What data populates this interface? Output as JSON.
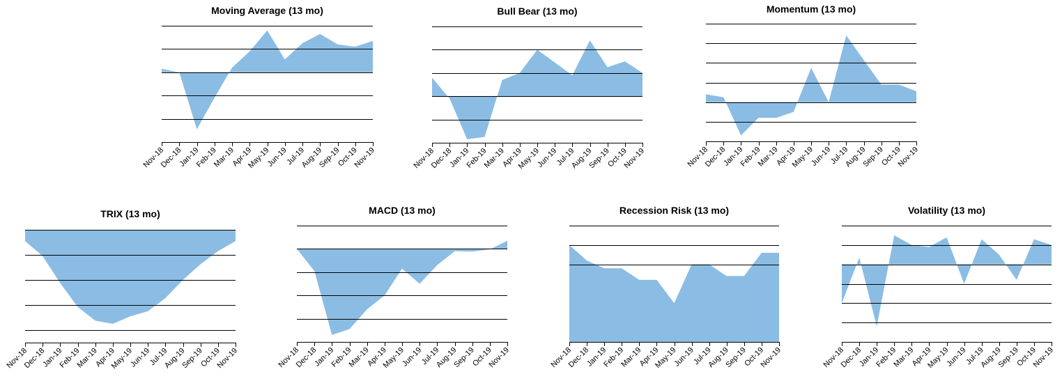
{
  "fill_color": "#8bbde4",
  "chart_data": [
    {
      "type": "area",
      "title": "Moving Average (13 mo)",
      "categories": [
        "Nov-18",
        "Dec-18",
        "Jan-19",
        "Feb-19",
        "Mar-19",
        "Apr-19",
        "May-19",
        "Jun-19",
        "Jul-19",
        "Aug-19",
        "Sep-19",
        "Oct-19",
        "Nov-19"
      ],
      "values": [
        0.3,
        0,
        -4.9,
        -2.2,
        0.4,
        1.8,
        3.6,
        1.1,
        2.5,
        3.3,
        2.4,
        2.2,
        2.7
      ],
      "ylim": [
        -6,
        4
      ],
      "gridlines": [
        4,
        2,
        0,
        -2,
        -4
      ],
      "baseline": 0,
      "grid": true
    },
    {
      "type": "area",
      "title": "Bull Bear (13 mo)",
      "categories": [
        "Nov-18",
        "Dec-18",
        "Jan-19",
        "Feb-19",
        "Mar-19",
        "Apr-19",
        "May-19",
        "Jun-19",
        "Jul-19",
        "Aug-19",
        "Sep-19",
        "Oct-19",
        "Nov-19"
      ],
      "values": [
        1.6,
        -0.2,
        -3.7,
        -3.5,
        1.4,
        2.0,
        4.0,
        2.9,
        1.8,
        4.8,
        2.5,
        3.0,
        2.0
      ],
      "ylim": [
        -4,
        6
      ],
      "gridlines": [
        6,
        4,
        2,
        0,
        -2
      ],
      "baseline": 0,
      "grid": true
    },
    {
      "type": "area",
      "title": "Momentum (13 mo)",
      "categories": [
        "Nov-18",
        "Dec-18",
        "Jan-19",
        "Feb-19",
        "Mar-19",
        "Apr-19",
        "May-19",
        "Jun-19",
        "Jul-19",
        "Aug-19",
        "Sep-19",
        "Oct-19",
        "Nov-19"
      ],
      "values": [
        0.8,
        0.5,
        -3.4,
        -1.6,
        -1.6,
        -1.0,
        3.5,
        0,
        6.8,
        4.3,
        1.8,
        1.8,
        1.1
      ],
      "ylim": [
        -4,
        8
      ],
      "gridlines": [
        8,
        6,
        4,
        2,
        0,
        -2
      ],
      "baseline": 0,
      "grid": true
    },
    {
      "type": "area",
      "title": "TRIX (13 mo)",
      "categories": [
        "Nov-18",
        "Dec-18",
        "Jan-19",
        "Feb-19",
        "Mar-19",
        "Apr-19",
        "May-19",
        "Jun-19",
        "Jul-19",
        "Aug-19",
        "Sep-19",
        "Oct-19",
        "Nov-19"
      ],
      "values": [
        -0.18,
        -0.42,
        -0.85,
        -1.23,
        -1.45,
        -1.5,
        -1.38,
        -1.3,
        -1.09,
        -0.8,
        -0.55,
        -0.34,
        -0.18
      ],
      "ylim": [
        -1.8,
        0
      ],
      "gridlines": [
        0,
        -0.4,
        -0.8,
        -1.2,
        -1.6
      ],
      "baseline": 0,
      "grid": true
    },
    {
      "type": "area",
      "title": "MACD (13 mo)",
      "categories": [
        "Nov-18",
        "Dec-18",
        "Jan-19",
        "Feb-19",
        "Mar-19",
        "Apr-19",
        "May-19",
        "Jun-19",
        "Jul-19",
        "Aug-19",
        "Sep-19",
        "Oct-19",
        "Nov-19"
      ],
      "values": [
        0,
        -0.95,
        -3.7,
        -3.45,
        -2.6,
        -2.0,
        -0.85,
        -1.5,
        -0.7,
        -0.1,
        -0.12,
        -0.02,
        0.35
      ],
      "ylim": [
        -4,
        1
      ],
      "gridlines": [
        1,
        0,
        -1,
        -2,
        -3
      ],
      "baseline": 0,
      "grid": true
    },
    {
      "type": "area",
      "title": "Recession Risk (13 mo)",
      "categories": [
        "Nov-18",
        "Dec-18",
        "Jan-19",
        "Feb-19",
        "Mar-19",
        "Apr-19",
        "May-19",
        "Jun-19",
        "Jul-19",
        "Aug-19",
        "Sep-19",
        "Oct-19",
        "Nov-19"
      ],
      "values": [
        50,
        42,
        38,
        38,
        32,
        32,
        20,
        40,
        40,
        34,
        34,
        46,
        46
      ],
      "ylim": [
        0,
        60
      ],
      "gridlines": [
        60,
        50,
        40
      ],
      "baseline": 0,
      "grid": true
    },
    {
      "type": "area",
      "title": "Volatility (13 mo)",
      "categories": [
        "Nov-18",
        "Dec-18",
        "Jan-19",
        "Feb-19",
        "Mar-19",
        "Apr-19",
        "May-19",
        "Jun-19",
        "Jul-19",
        "Aug-19",
        "Sep-19",
        "Oct-19",
        "Nov-19"
      ],
      "values": [
        -2.0,
        0.35,
        -3.2,
        1.5,
        1.0,
        0.9,
        1.4,
        -1.0,
        1.3,
        0.5,
        -0.8,
        1.3,
        1.0
      ],
      "ylim": [
        -4,
        2
      ],
      "gridlines": [
        2,
        1,
        0,
        -1,
        -2,
        -3
      ],
      "baseline": 0,
      "grid": true
    }
  ]
}
